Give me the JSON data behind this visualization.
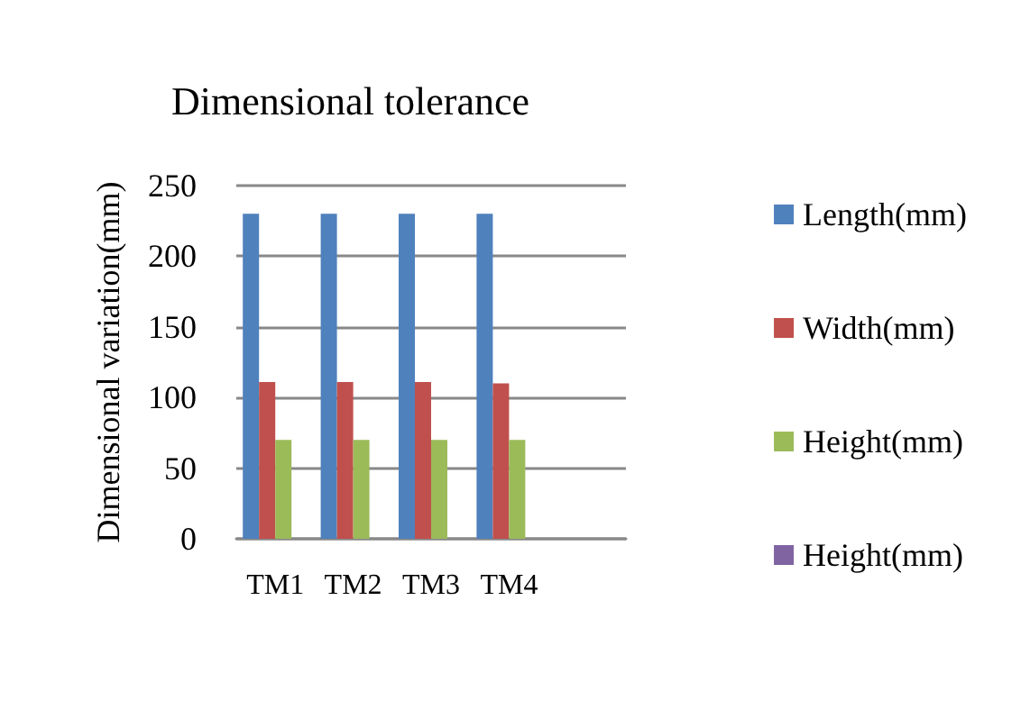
{
  "chart_data": {
    "type": "bar",
    "title": "Dimensional tolerance",
    "ylabel": "Dimensional variation(mm)",
    "categories": [
      "TM1",
      "TM2",
      "TM3",
      "TM4",
      null
    ],
    "series": [
      {
        "name": "Length(mm)",
        "color": "#4f81bd",
        "values": [
          230,
          230,
          230,
          230,
          null
        ]
      },
      {
        "name": "Width(mm)",
        "color": "#c0504d",
        "values": [
          111,
          111,
          111,
          110,
          null
        ]
      },
      {
        "name": "Height(mm)",
        "color": "#9bbb59",
        "values": [
          70,
          70,
          70,
          70,
          null
        ]
      },
      {
        "name": "Height(mm)",
        "color": "#8064a2",
        "values": [
          null,
          null,
          null,
          null,
          null
        ]
      }
    ],
    "ylim": [
      0,
      250
    ],
    "yticks": [
      0,
      50,
      100,
      150,
      200,
      250
    ],
    "grid": "y",
    "legend": "right"
  }
}
